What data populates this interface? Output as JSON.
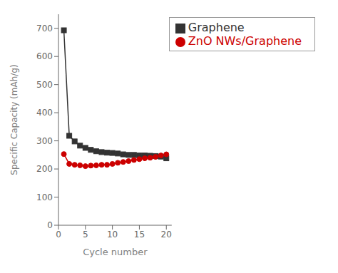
{
  "chart_data": {
    "type": "line",
    "xlabel": "Cycle number",
    "ylabel": "Specific Capacity (mAh/g)",
    "x": [
      1,
      2,
      3,
      4,
      5,
      6,
      7,
      8,
      9,
      10,
      11,
      12,
      13,
      14,
      15,
      16,
      17,
      18,
      19,
      20
    ],
    "series": [
      {
        "name": "Graphene",
        "color": "#333333",
        "marker": "square",
        "values": [
          693,
          318,
          298,
          283,
          275,
          268,
          263,
          260,
          258,
          257,
          255,
          252,
          250,
          250,
          248,
          248,
          247,
          246,
          244,
          238
        ]
      },
      {
        "name": "ZnO NWs/Graphene",
        "color": "#cc0000",
        "marker": "circle",
        "values": [
          253,
          218,
          215,
          213,
          210,
          212,
          213,
          215,
          215,
          218,
          222,
          225,
          228,
          232,
          235,
          238,
          240,
          243,
          248,
          252
        ]
      }
    ],
    "xlim": [
      0,
      21
    ],
    "ylim": [
      0,
      750
    ],
    "xticks": [
      0,
      5,
      10,
      15,
      20
    ],
    "yticks": [
      0,
      100,
      200,
      300,
      400,
      500,
      600,
      700
    ],
    "grid": false,
    "legend": "upper right"
  }
}
